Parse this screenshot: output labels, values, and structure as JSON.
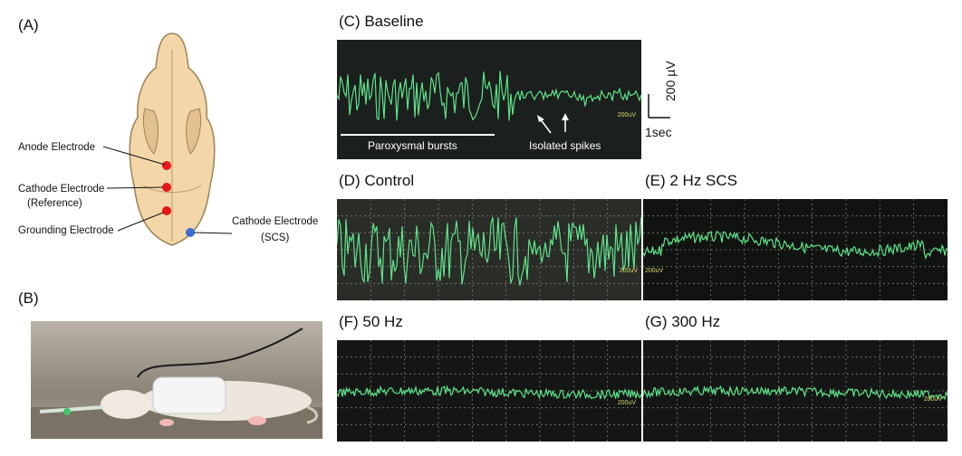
{
  "panels": {
    "a": {
      "label": "(A)",
      "electrodes": {
        "anode": "Anode Electrode",
        "cathode_ref_line1": "Cathode Electrode",
        "cathode_ref_line2": "(Reference)",
        "grounding": "Grounding Electrode",
        "cathode_scs_line1": "Cathode Electrode",
        "cathode_scs_line2": "(SCS)"
      }
    },
    "b": {
      "label": "(B)"
    },
    "c": {
      "label": "(C) Baseline",
      "scope_tag": "200uV",
      "annotation_bursts": "Paroxysmal bursts",
      "annotation_spikes": "Isolated spikes",
      "scale_voltage": "200 µV",
      "scale_time": "1sec"
    },
    "d": {
      "label": "(D) Control",
      "scope_tag": "200uV"
    },
    "e": {
      "label": "(E) 2 Hz SCS",
      "scope_tag": "200uV"
    },
    "f": {
      "label": "(F) 50 Hz",
      "scope_tag": "200uV"
    },
    "g": {
      "label": "(G) 300 Hz",
      "scope_tag": "200uV"
    }
  },
  "colors": {
    "trace": "#5fe38a",
    "scope_bg": "#1b1f1d",
    "grid": "#7a7f6a",
    "skull": "#f3d7a8",
    "electrode_red": "#e8161b",
    "electrode_blue": "#3b6fd1"
  }
}
